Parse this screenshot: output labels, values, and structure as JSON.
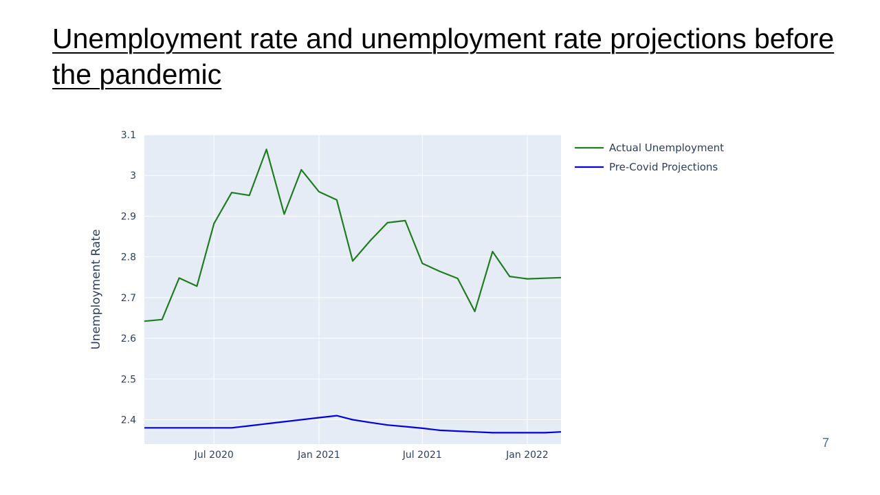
{
  "slide": {
    "title": "Unemployment rate and unemployment rate projections before the pandemic",
    "page_number": "7"
  },
  "colors": {
    "plot_bg": "#e5ecf6",
    "grid": "#ffffff",
    "actual": "#1e7d1e",
    "projection": "#0000e0"
  },
  "chart_data": {
    "type": "line",
    "title": "",
    "xlabel": "",
    "ylabel": "Unemployment Rate",
    "xlim": [
      "2020-03-01",
      "2022-03-01"
    ],
    "ylim": [
      2.34,
      3.1
    ],
    "yticks": [
      2.4,
      2.5,
      2.6,
      2.7,
      2.8,
      2.9,
      3,
      3.1
    ],
    "yticklabels": [
      "2.4",
      "2.5",
      "2.6",
      "2.7",
      "2.8",
      "2.9",
      "3",
      "3.1"
    ],
    "xticks": [
      "2020-07-01",
      "2021-01-01",
      "2021-07-01",
      "2022-01-01"
    ],
    "xticklabels": [
      "Jul 2020",
      "Jan 2021",
      "Jul 2021",
      "Jan 2022"
    ],
    "grid": true,
    "legend_position": "right",
    "series": [
      {
        "name": "Actual Unemployment",
        "color": "#1e7d1e",
        "x": [
          "2020-03-01",
          "2020-04-01",
          "2020-05-01",
          "2020-06-01",
          "2020-07-01",
          "2020-08-01",
          "2020-09-01",
          "2020-10-01",
          "2020-11-01",
          "2020-12-01",
          "2021-01-01",
          "2021-02-01",
          "2021-03-01",
          "2021-04-01",
          "2021-05-01",
          "2021-06-01",
          "2021-07-01",
          "2021-08-01",
          "2021-09-01",
          "2021-10-01",
          "2021-11-01",
          "2021-12-01",
          "2022-01-01",
          "2022-03-01"
        ],
        "y": [
          2.642,
          2.646,
          2.748,
          2.728,
          2.882,
          2.958,
          2.951,
          3.064,
          2.905,
          3.014,
          2.96,
          2.94,
          2.79,
          2.84,
          2.884,
          2.889,
          2.784,
          2.764,
          2.747,
          2.666,
          2.813,
          2.752,
          2.746,
          2.749
        ]
      },
      {
        "name": "Pre-Covid Projections",
        "color": "#0000e0",
        "x": [
          "2020-03-01",
          "2020-04-01",
          "2020-05-01",
          "2020-06-01",
          "2020-07-01",
          "2020-08-01",
          "2020-09-01",
          "2020-10-01",
          "2020-11-01",
          "2020-12-01",
          "2021-01-01",
          "2021-02-01",
          "2021-03-01",
          "2021-04-01",
          "2021-05-01",
          "2021-06-01",
          "2021-07-01",
          "2021-08-01",
          "2021-09-01",
          "2021-10-01",
          "2021-11-01",
          "2021-12-01",
          "2022-01-01",
          "2022-02-01",
          "2022-03-01"
        ],
        "y": [
          2.38,
          2.38,
          2.38,
          2.38,
          2.38,
          2.38,
          2.385,
          2.39,
          2.395,
          2.4,
          2.405,
          2.41,
          2.4,
          2.393,
          2.387,
          2.383,
          2.379,
          2.374,
          2.372,
          2.37,
          2.368,
          2.368,
          2.368,
          2.368,
          2.37
        ]
      }
    ]
  }
}
